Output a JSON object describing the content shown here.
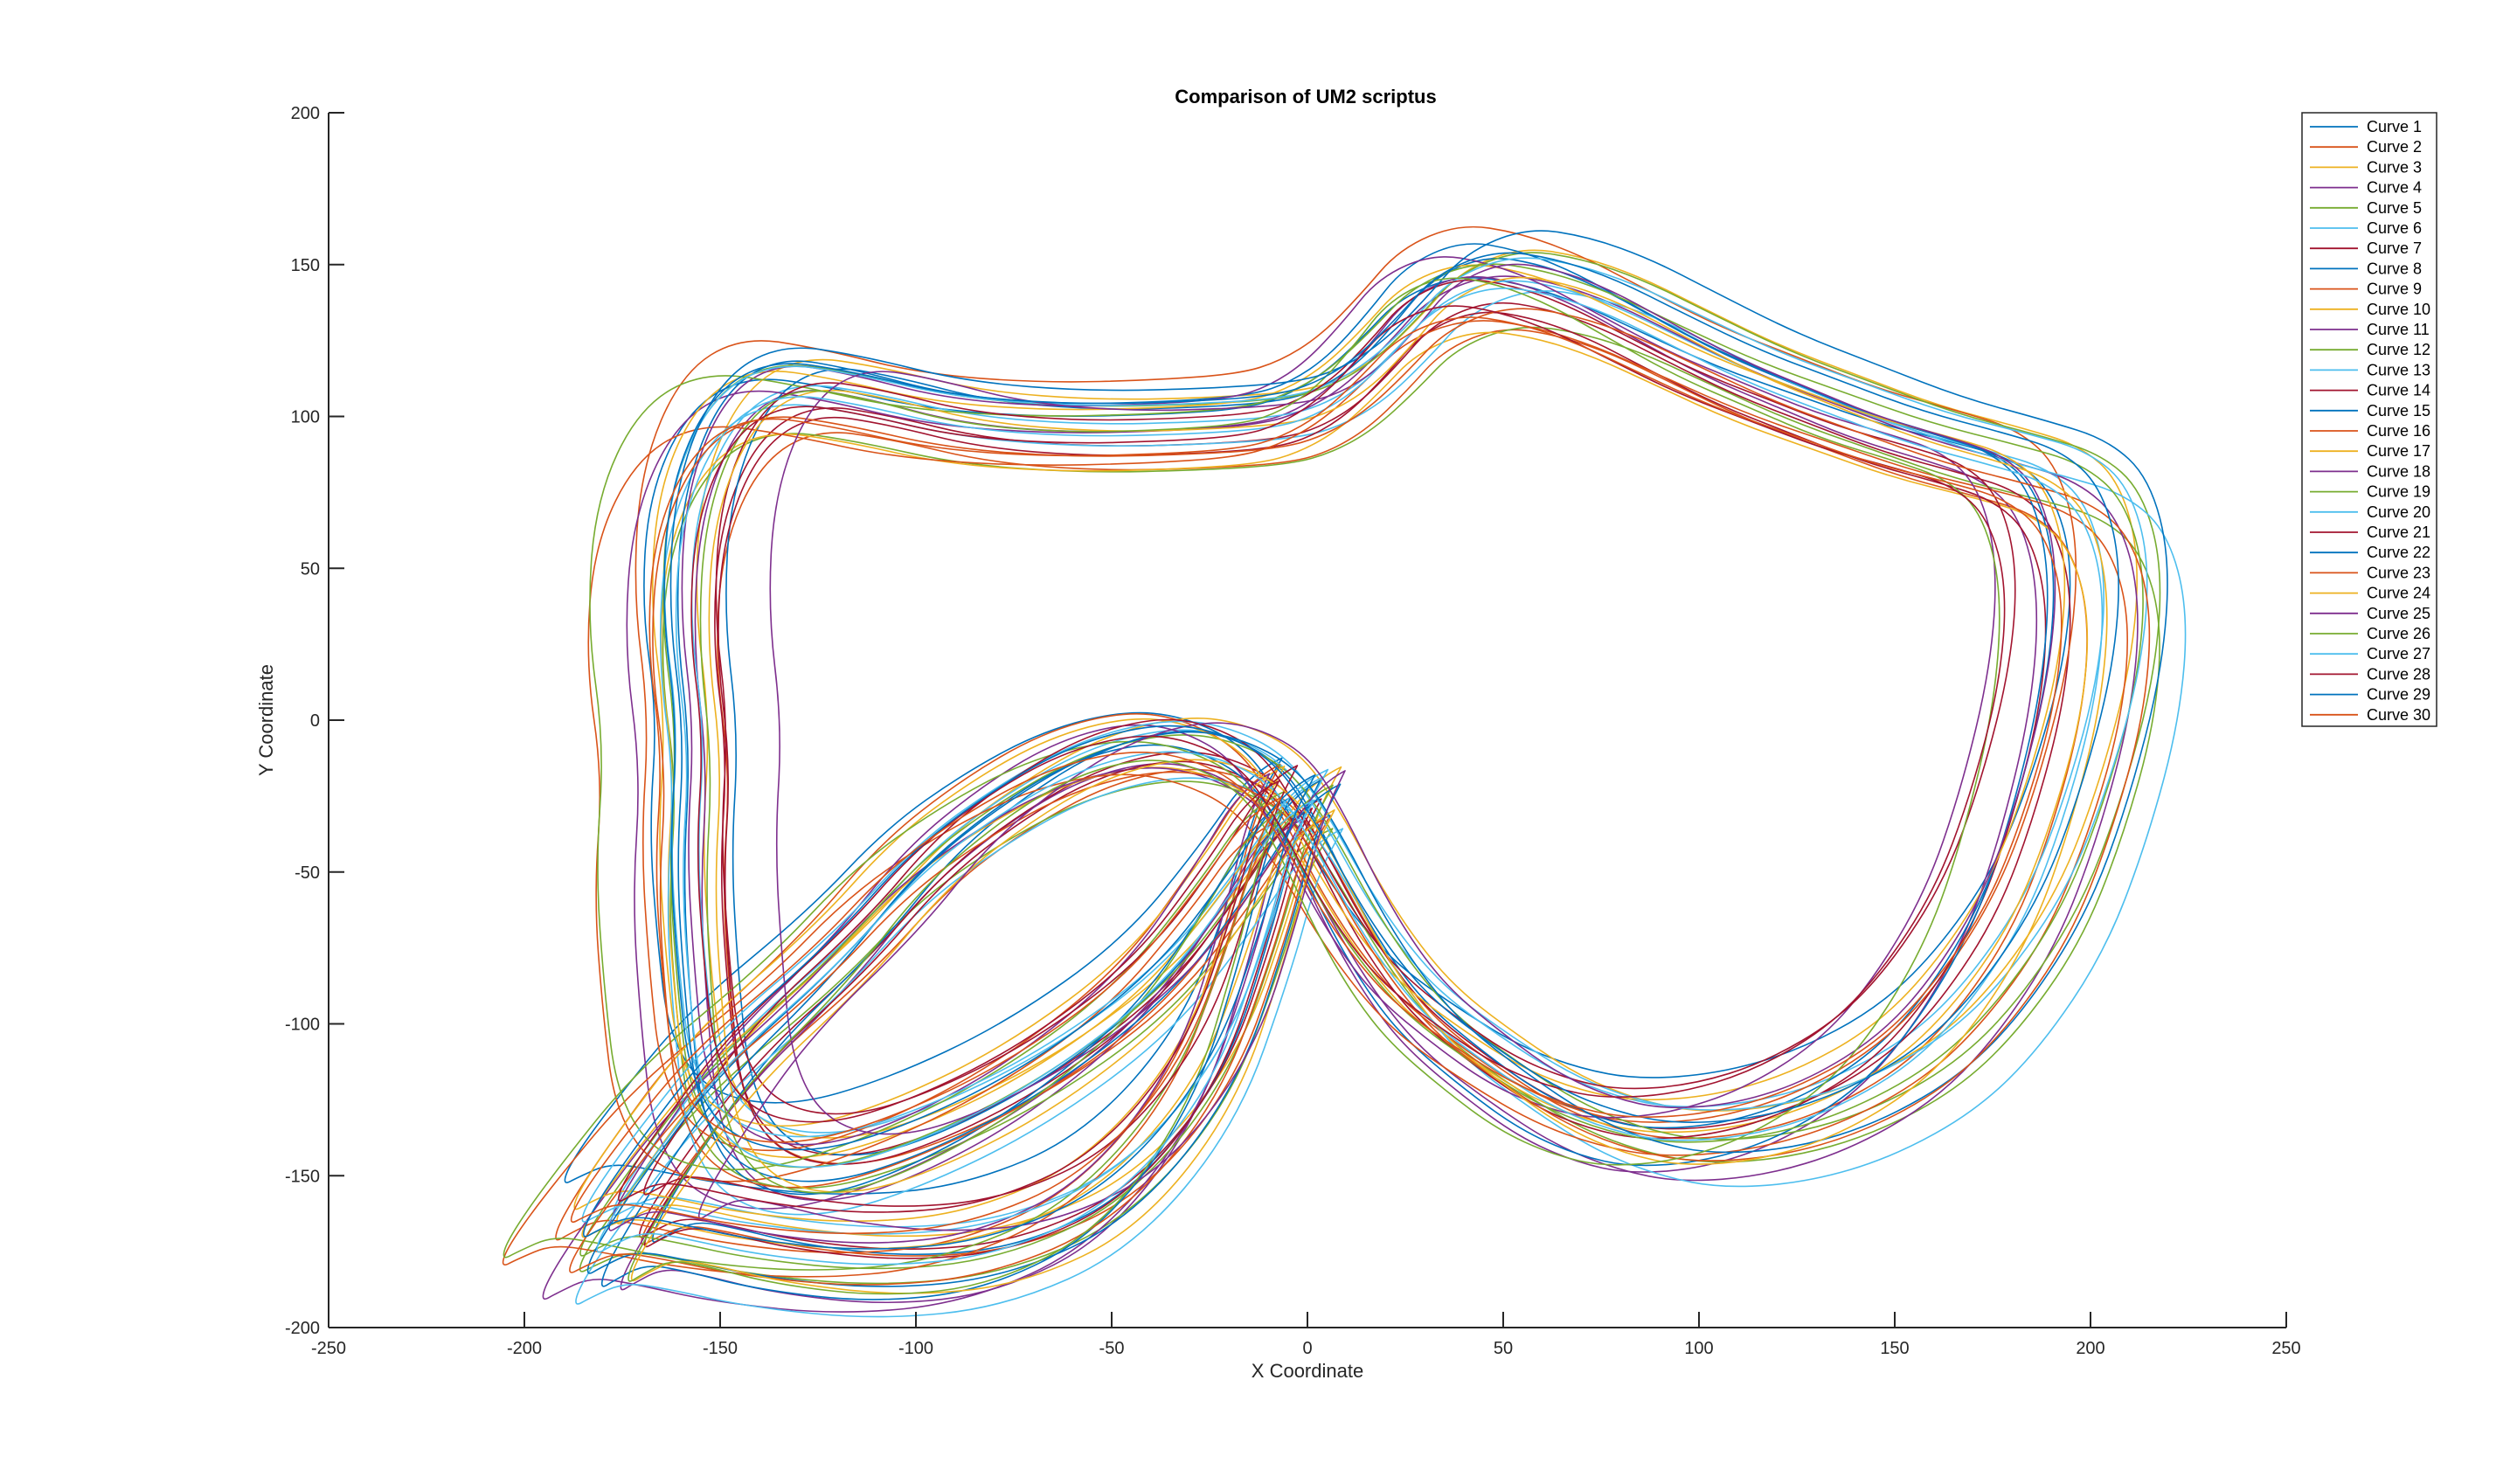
{
  "chart_data": {
    "type": "line",
    "title": "Comparison of UM2 scriptus",
    "xlabel": "X Coordinate",
    "ylabel": "Y Coordinate",
    "xlim": [
      -250,
      250
    ],
    "ylim": [
      -200,
      200
    ],
    "xticks": [
      -250,
      -200,
      -150,
      -100,
      -50,
      0,
      50,
      100,
      150,
      200,
      250
    ],
    "yticks": [
      -200,
      -150,
      -100,
      -50,
      0,
      50,
      100,
      150,
      200
    ],
    "xtick_labels": [
      "-250",
      "-200",
      "-150",
      "-100",
      "-50",
      "0",
      "50",
      "100",
      "150",
      "200",
      "250"
    ],
    "ytick_labels": [
      "-200",
      "-150",
      "-100",
      "-50",
      "0",
      "50",
      "100",
      "150",
      "200"
    ],
    "grid": false,
    "legend_position": "top-right",
    "palette": [
      "#0072BD",
      "#D95319",
      "#EDB120",
      "#7E2F8E",
      "#77AC30",
      "#4DBEEE",
      "#A2142F"
    ],
    "template_path": {
      "x": [
        0,
        -8,
        -20,
        -40,
        -70,
        -100,
        -125,
        -145,
        -155,
        -158,
        -160,
        -158,
        -162,
        -160,
        -150,
        -135,
        -115,
        -90,
        -60,
        -30,
        -10,
        0,
        10,
        20,
        30,
        45,
        60,
        75,
        90,
        110,
        130,
        150,
        170,
        185,
        195,
        200,
        198,
        190,
        180,
        165,
        150,
        130,
        110,
        90,
        75,
        60,
        45,
        30,
        20,
        10,
        0,
        -10,
        -25,
        -40,
        -60,
        -80,
        -100,
        -120,
        -150,
        -170,
        -180,
        -182,
        -178,
        -170,
        -160,
        -140,
        -110,
        -80,
        -50,
        -25,
        -12,
        -6,
        0
      ],
      "y": [
        -25,
        -30,
        -55,
        -90,
        -120,
        -140,
        -150,
        -145,
        -125,
        -90,
        -50,
        -10,
        30,
        70,
        100,
        112,
        108,
        100,
        97,
        98,
        100,
        104,
        112,
        125,
        140,
        148,
        145,
        138,
        128,
        115,
        105,
        95,
        88,
        82,
        70,
        45,
        10,
        -30,
        -65,
        -95,
        -115,
        -130,
        -138,
        -140,
        -136,
        -128,
        -115,
        -100,
        -85,
        -65,
        -40,
        -20,
        -10,
        -8,
        -15,
        -30,
        -50,
        -80,
        -115,
        -150,
        -170,
        -178,
        -175,
        -170,
        -172,
        -178,
        -182,
        -178,
        -160,
        -120,
        -70,
        -40,
        -25
      ]
    },
    "series": [
      {
        "name": "Curve 1",
        "dx": -6.5,
        "dy": 10.5,
        "sx": 1.01,
        "sy": 0.92,
        "color": "#0072BD"
      },
      {
        "name": "Curve 2",
        "dx": 5.8,
        "dy": -8.1,
        "sx": 0.97,
        "sy": 0.93,
        "color": "#D95319"
      },
      {
        "name": "Curve 3",
        "dx": 8.6,
        "dy": 9.3,
        "sx": 1.02,
        "sy": 0.99,
        "color": "#EDB120"
      },
      {
        "name": "Curve 4",
        "dx": -3.1,
        "dy": -5.3,
        "sx": 0.95,
        "sy": 1.03,
        "color": "#7E2F8E"
      },
      {
        "name": "Curve 5",
        "dx": 6.4,
        "dy": -11.7,
        "sx": 1.06,
        "sy": 0.96,
        "color": "#77AC30"
      },
      {
        "name": "Curve 6",
        "dx": 4.1,
        "dy": 5.1,
        "sx": 1.0,
        "sy": 0.95,
        "color": "#4DBEEE"
      },
      {
        "name": "Curve 7",
        "dx": 3.5,
        "dy": -2.2,
        "sx": 0.96,
        "sy": 0.95,
        "color": "#A2142F"
      },
      {
        "name": "Curve 8",
        "dx": 3.2,
        "dy": 5.1,
        "sx": 0.94,
        "sy": 1.0,
        "color": "#0072BD"
      },
      {
        "name": "Curve 9",
        "dx": -7.0,
        "dy": 11.1,
        "sx": 1.02,
        "sy": 1.03,
        "color": "#D95319"
      },
      {
        "name": "Curve 10",
        "dx": -2.1,
        "dy": -7.5,
        "sx": 1.01,
        "sy": 0.92,
        "color": "#EDB120"
      },
      {
        "name": "Curve 11",
        "dx": -1.2,
        "dy": -6.6,
        "sx": 1.07,
        "sy": 1.04,
        "color": "#7E2F8E"
      },
      {
        "name": "Curve 12",
        "dx": 6.5,
        "dy": 4.1,
        "sx": 1.06,
        "sy": 1.02,
        "color": "#77AC30"
      },
      {
        "name": "Curve 13",
        "dx": 9.0,
        "dy": -10.0,
        "sx": 1.08,
        "sy": 1.03,
        "color": "#4DBEEE"
      },
      {
        "name": "Curve 14",
        "dx": 1.2,
        "dy": -5.3,
        "sx": 0.94,
        "sy": 0.95,
        "color": "#A2142F"
      },
      {
        "name": "Curve 15",
        "dx": -4.3,
        "dy": 1.1,
        "sx": 0.97,
        "sy": 1.06,
        "color": "#0072BD"
      },
      {
        "name": "Curve 16",
        "dx": -7.8,
        "dy": -9.5,
        "sx": 1.09,
        "sy": 0.96,
        "color": "#D95319"
      },
      {
        "name": "Curve 17",
        "dx": -5.9,
        "dy": 8.8,
        "sx": 1.0,
        "sy": 0.96,
        "color": "#EDB120"
      },
      {
        "name": "Curve 18",
        "dx": -9.7,
        "dy": 7.1,
        "sx": 0.93,
        "sy": 0.99,
        "color": "#7E2F8E"
      },
      {
        "name": "Curve 19",
        "dx": -5.8,
        "dy": 1.8,
        "sx": 1.1,
        "sy": 1.01,
        "color": "#77AC30"
      },
      {
        "name": "Curve 20",
        "dx": 5.2,
        "dy": 8.2,
        "sx": 1.05,
        "sy": 0.98,
        "color": "#4DBEEE"
      },
      {
        "name": "Curve 21",
        "dx": -2.6,
        "dy": 8.3,
        "sx": 0.92,
        "sy": 0.93,
        "color": "#A2142F"
      },
      {
        "name": "Curve 22",
        "dx": 8.4,
        "dy": 5.4,
        "sx": 1.06,
        "sy": 1.06,
        "color": "#0072BD"
      },
      {
        "name": "Curve 23",
        "dx": 3.8,
        "dy": -8.5,
        "sx": 1.06,
        "sy": 0.98,
        "color": "#D95319"
      },
      {
        "name": "Curve 24",
        "dx": 6.9,
        "dy": -4.1,
        "sx": 0.99,
        "sy": 1.02,
        "color": "#EDB120"
      },
      {
        "name": "Curve 25",
        "dx": 9.6,
        "dy": 7.6,
        "sx": 0.91,
        "sy": 0.97,
        "color": "#7E2F8E"
      },
      {
        "name": "Curve 26",
        "dx": -6.6,
        "dy": -4.3,
        "sx": 0.92,
        "sy": 1.02,
        "color": "#77AC30"
      },
      {
        "name": "Curve 27",
        "dx": 1.7,
        "dy": -1.8,
        "sx": 1.01,
        "sy": 0.98,
        "color": "#4DBEEE"
      },
      {
        "name": "Curve 28",
        "dx": -7.3,
        "dy": 2.7,
        "sx": 0.93,
        "sy": 0.91,
        "color": "#A2142F"
      },
      {
        "name": "Curve 29",
        "dx": 1.9,
        "dy": 6.9,
        "sx": 1.03,
        "sy": 1.0,
        "color": "#0072BD"
      },
      {
        "name": "Curve 30",
        "dx": -6.7,
        "dy": -2.5,
        "sx": 1.0,
        "sy": 0.92,
        "color": "#D95319"
      }
    ]
  }
}
